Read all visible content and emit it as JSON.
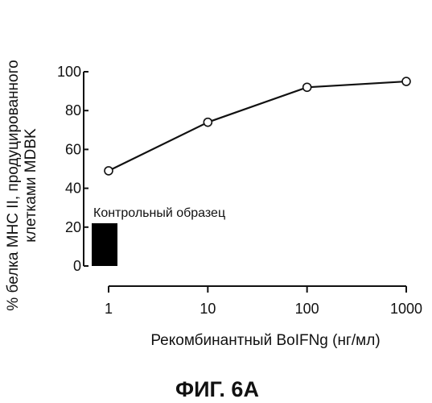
{
  "chart_data": {
    "type": "line",
    "x_scale": "log",
    "x": [
      1,
      10,
      100,
      1000
    ],
    "xlim": [
      1,
      1000
    ],
    "xticks": [
      1,
      10,
      100,
      1000
    ],
    "xtick_labels": [
      "1",
      "10",
      "100",
      "1000"
    ],
    "ylim": [
      0,
      100
    ],
    "yticks": [
      0,
      20,
      40,
      60,
      80,
      100
    ],
    "ytick_labels": [
      "0",
      "20",
      "40",
      "60",
      "80",
      "100"
    ],
    "series": [
      {
        "values": [
          49,
          74,
          92,
          95
        ],
        "marker": "open-circle",
        "color": "#111111"
      }
    ],
    "control": {
      "label": "Контрольный образец",
      "value": 22,
      "color": "#000000"
    },
    "xlabel": "Рекомбинантный BoIFNg (нг/мл)",
    "ylabel_line1": "% белка МНС II, продуцированного",
    "ylabel_line2": "клетками MDBK",
    "grid": false
  },
  "caption": "ФИГ. 6А"
}
